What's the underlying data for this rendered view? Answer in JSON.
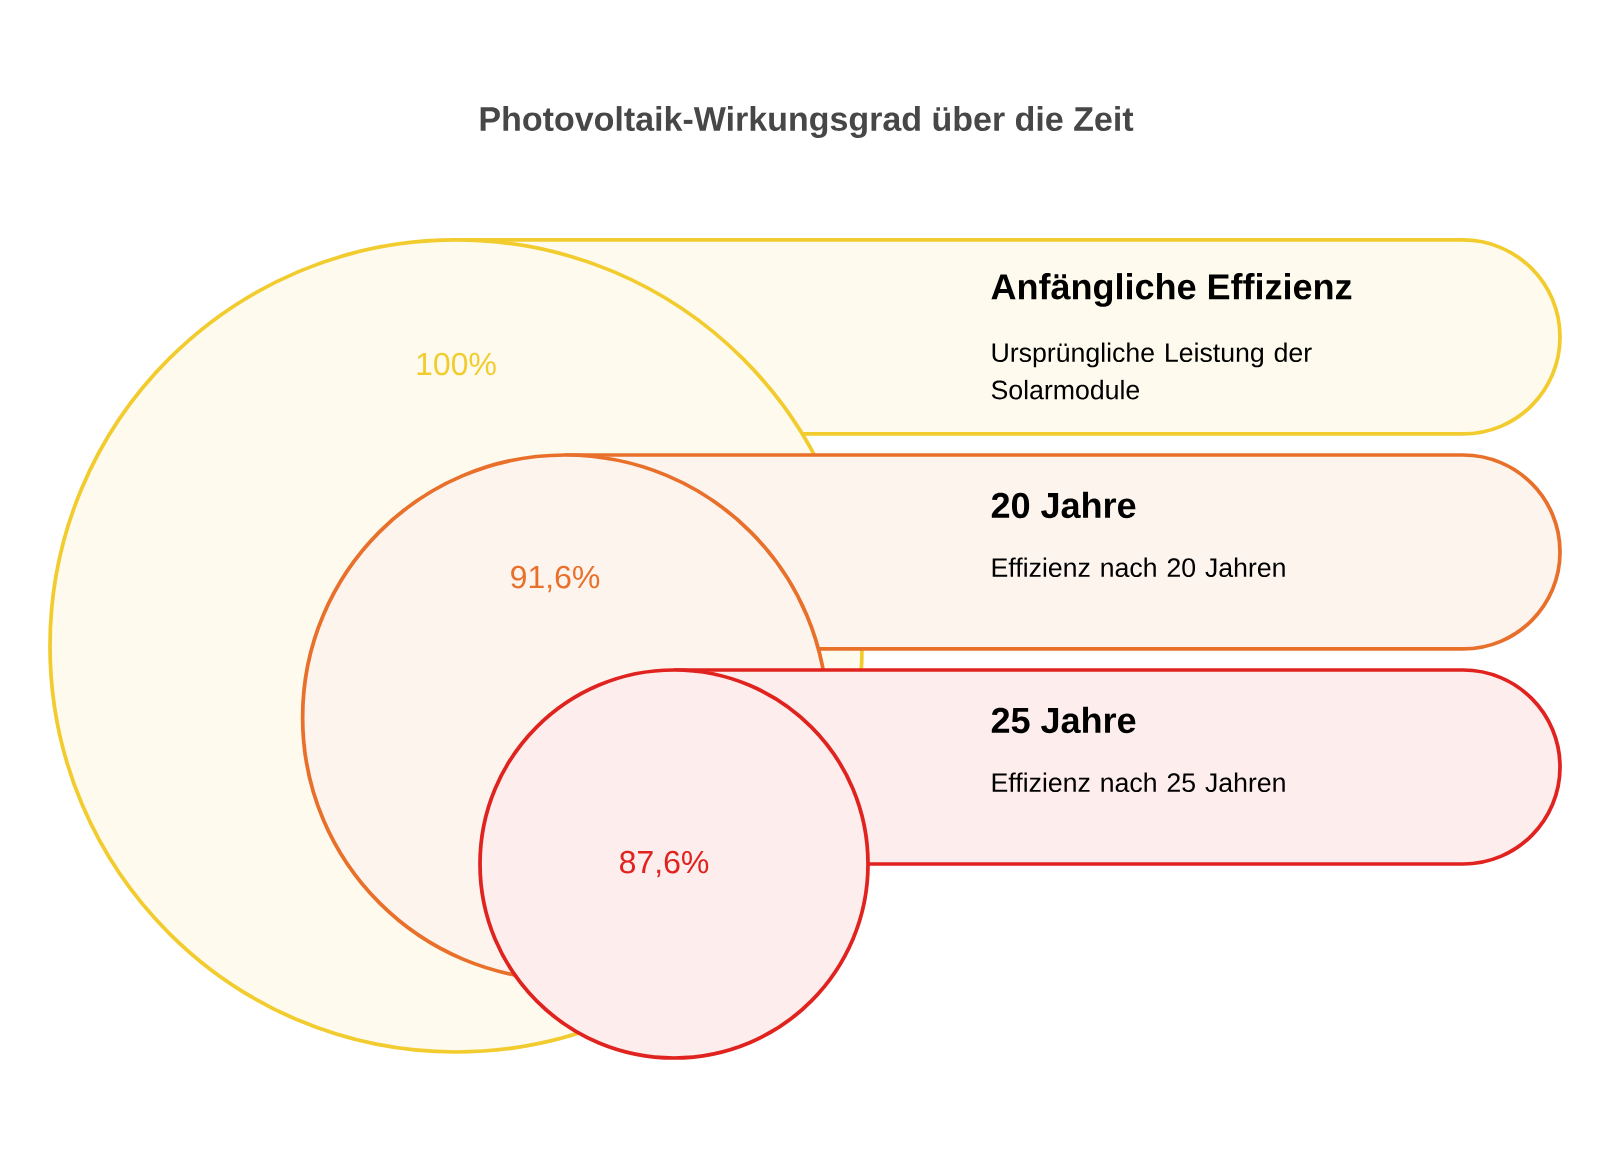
{
  "chart_data": {
    "type": "other",
    "title": "Photovoltaik-Wirkungsgrad über die Zeit",
    "categories": [
      "Anfängliche Effizienz",
      "20 Jahre",
      "25 Jahre"
    ],
    "values": [
      100,
      91.6,
      87.6
    ],
    "value_labels": [
      "100%",
      "91,6%",
      "87,6%"
    ],
    "colors": [
      "#f2cc2e",
      "#e8702a",
      "#e0231f"
    ],
    "annotations": [
      "Ursprüngliche Leistung der Solarmodule",
      "Effizienz nach 20 Jahren",
      "Effizienz nach 25 Jahren"
    ]
  }
}
